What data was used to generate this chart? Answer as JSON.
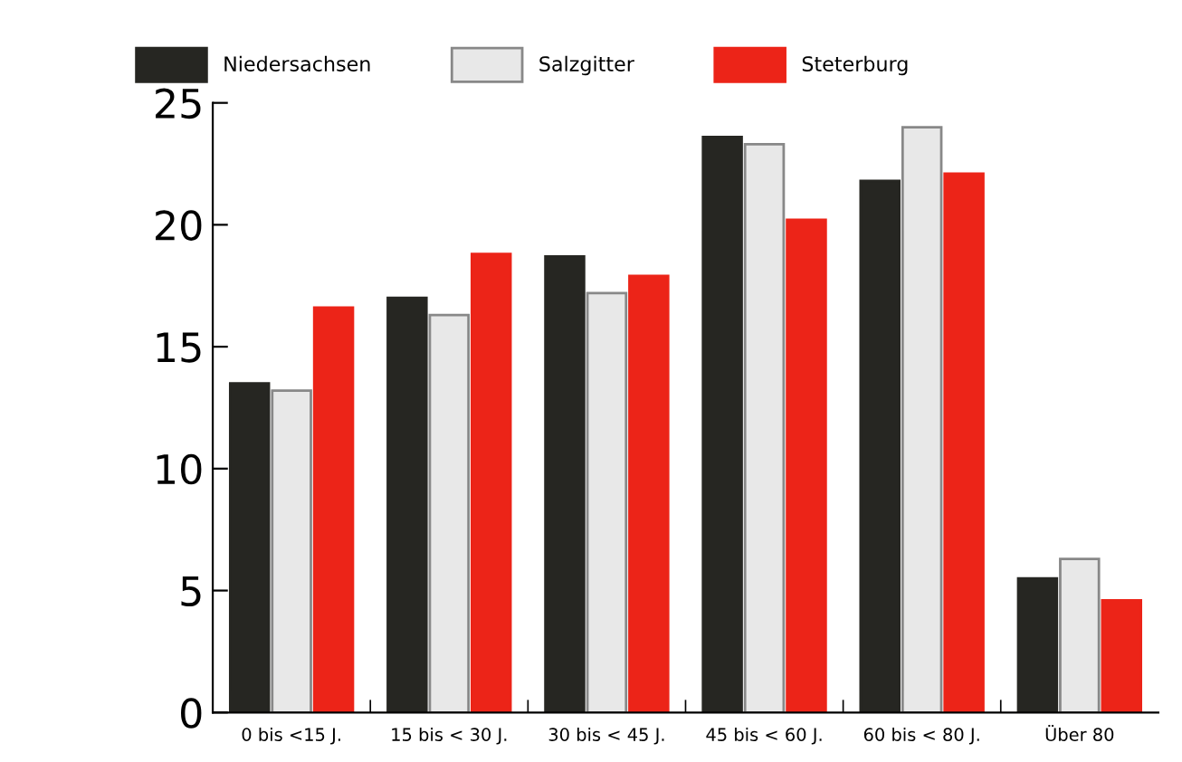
{
  "chart_data": {
    "type": "bar",
    "categories": [
      "0 bis <15 J.",
      "15 bis < 30 J.",
      "30 bis < 45 J.",
      "45 bis < 60 J.",
      "60 bis < 80 J.",
      "Über 80"
    ],
    "series": [
      {
        "name": "Niedersachsen",
        "color": "#262622",
        "values": [
          13.5,
          17.0,
          18.7,
          23.6,
          21.8,
          5.5
        ]
      },
      {
        "name": "Salzgitter",
        "color": "#e8e8e8",
        "values": [
          13.2,
          16.3,
          17.2,
          23.3,
          24.0,
          6.3
        ]
      },
      {
        "name": "Steterburg",
        "color": "#ec2418",
        "values": [
          16.6,
          18.8,
          17.9,
          20.2,
          22.1,
          4.6
        ]
      }
    ],
    "ylim": [
      0,
      25
    ],
    "yticks": [
      0,
      5,
      10,
      15,
      20,
      25
    ],
    "grid": false,
    "legend": "top left"
  }
}
